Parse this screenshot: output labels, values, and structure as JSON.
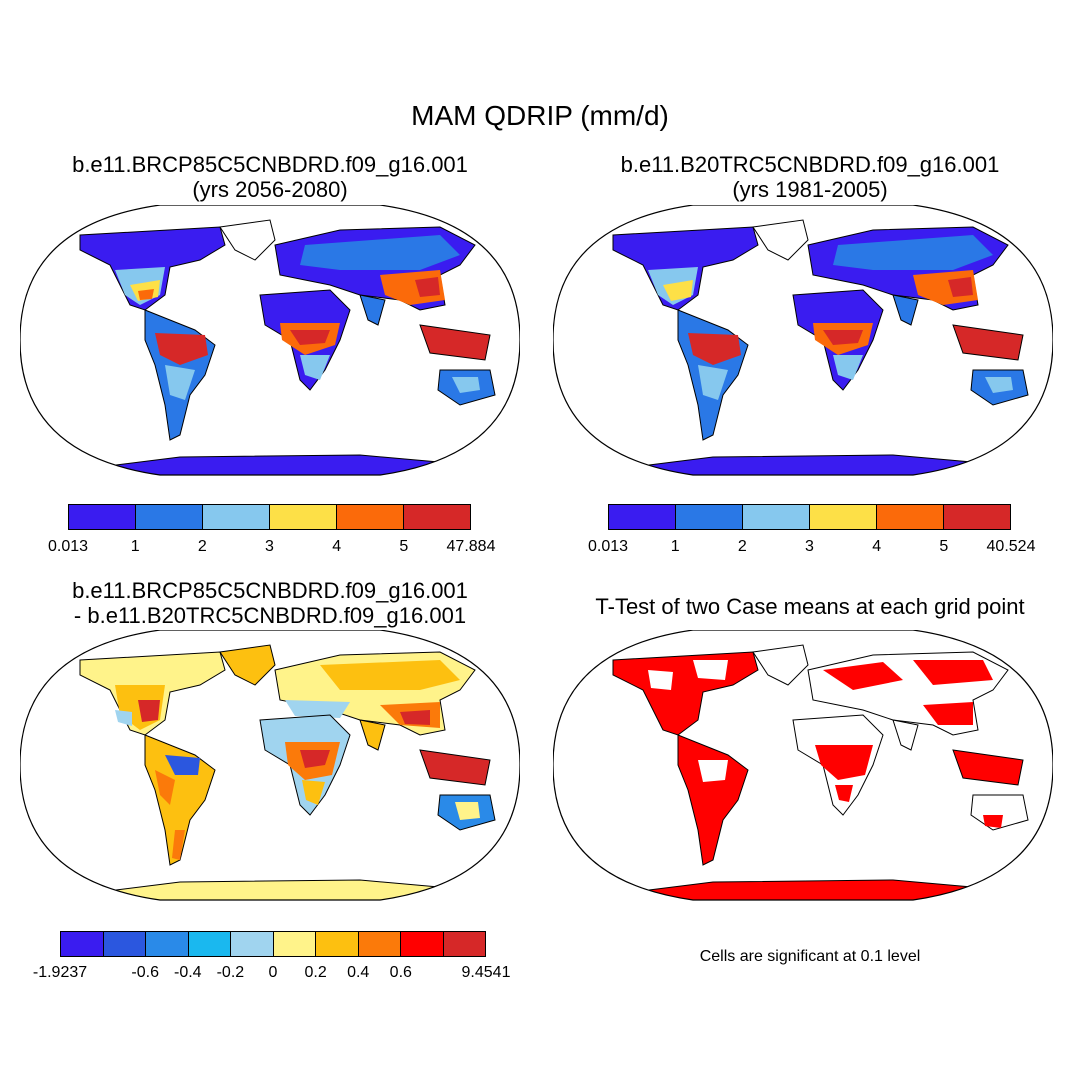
{
  "main_title": "MAM QDRIP (mm/d)",
  "panels": {
    "top_left": {
      "title_line1": "b.e11.BRCP85C5CNBDRD.f09_g16.001",
      "title_line2": "(yrs 2056-2080)"
    },
    "top_right": {
      "title_line1": "b.e11.B20TRC5CNBDRD.f09_g16.001",
      "title_line2": "(yrs 1981-2005)"
    },
    "bottom_left": {
      "title_line1": "b.e11.BRCP85C5CNBDRD.f09_g16.001",
      "title_line2": "- b.e11.B20TRC5CNBDRD.f09_g16.001"
    },
    "bottom_right": {
      "title_line1": "T-Test of two Case means at each grid point",
      "note": "Cells are significant at 0.1 level"
    }
  },
  "colorbars": {
    "top_left": {
      "colors": [
        "#3a1cf0",
        "#2a78e6",
        "#86c8ee",
        "#fde047",
        "#fb6a0a",
        "#d62828"
      ],
      "labels": [
        "0.013",
        "1",
        "2",
        "3",
        "4",
        "5",
        "47.884"
      ]
    },
    "top_right": {
      "colors": [
        "#3a1cf0",
        "#2a78e6",
        "#86c8ee",
        "#fde047",
        "#fb6a0a",
        "#d62828"
      ],
      "labels": [
        "0.013",
        "1",
        "2",
        "3",
        "4",
        "5",
        "40.524"
      ]
    },
    "bottom_left": {
      "colors": [
        "#3a1cf0",
        "#2b57df",
        "#2a8ae8",
        "#1ab8ef",
        "#a0d4ef",
        "#fff38a",
        "#fdc010",
        "#fb7a0a",
        "#ff0000",
        "#d62828"
      ],
      "labels": [
        "-1.9237",
        "",
        "-0.6",
        "-0.4",
        "-0.2",
        "0",
        "0.2",
        "0.4",
        "0.6",
        "",
        "9.4541"
      ]
    },
    "significance_color": "#ff0000"
  },
  "maps": {
    "top_left": {
      "background": "#3a1cf0",
      "highlight_regions": [
        "wet-tropics-red",
        "cold-regions-blue"
      ]
    },
    "top_right": {
      "background": "#3a1cf0",
      "highlight_regions": [
        "wet-tropics-red",
        "cold-regions-blue"
      ]
    },
    "bottom_left": {
      "background": "#fff38a",
      "highlight_regions": [
        "positive-change",
        "negative-change"
      ]
    },
    "bottom_right": {
      "background": "#ff0000",
      "highlight_regions": [
        "significant-cells"
      ]
    }
  }
}
